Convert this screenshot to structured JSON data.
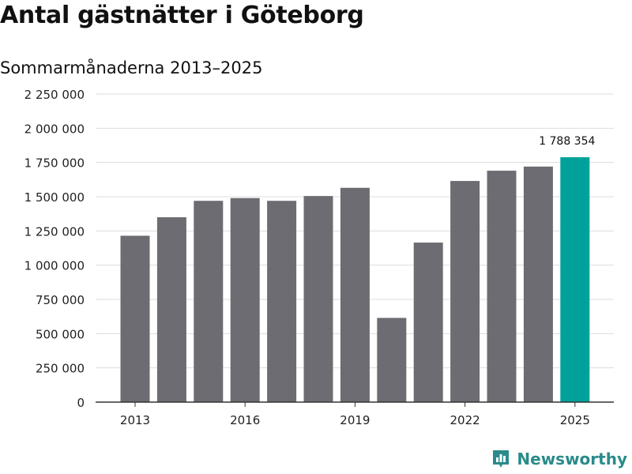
{
  "header": {
    "title": "Antal gästnätter i Göteborg",
    "subtitle": "Sommarmånaderna 2013–2025"
  },
  "brand": {
    "name": "Newsworthy",
    "icon": "newsworthy-logo-icon"
  },
  "colors": {
    "bar": "#6d6c72",
    "highlight": "#00a19a",
    "grid": "#dddddd",
    "axis": "#333333",
    "brand": "#2a8b8a"
  },
  "chart_data": {
    "type": "bar",
    "title": "Antal gästnätter i Göteborg",
    "subtitle": "Sommarmånaderna 2013–2025",
    "xlabel": "",
    "ylabel": "",
    "categories": [
      "2013",
      "2014",
      "2015",
      "2016",
      "2017",
      "2018",
      "2019",
      "2020",
      "2021",
      "2022",
      "2023",
      "2024",
      "2025"
    ],
    "values": [
      1215000,
      1350000,
      1470000,
      1490000,
      1470000,
      1505000,
      1565000,
      615000,
      1165000,
      1615000,
      1690000,
      1720000,
      1788354
    ],
    "x_tick_labels": [
      "2013",
      "2016",
      "2019",
      "2022",
      "2025"
    ],
    "y_ticks": [
      0,
      250000,
      500000,
      750000,
      1000000,
      1250000,
      1500000,
      1750000,
      2000000,
      2250000
    ],
    "y_tick_labels": [
      "0",
      "250 000",
      "500 000",
      "750 000",
      "1 000 000",
      "1 250 000",
      "1 500 000",
      "1 750 000",
      "2 000 000",
      "2 250 000"
    ],
    "ylim": [
      0,
      2250000
    ],
    "highlight_category": "2025",
    "annotations": [
      {
        "category": "2025",
        "text": "1 788 354"
      }
    ],
    "grid": true,
    "legend": "none"
  }
}
